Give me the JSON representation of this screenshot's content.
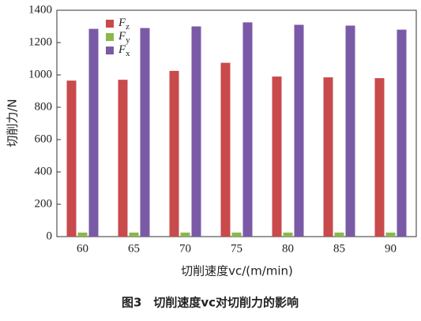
{
  "chart_data": {
    "type": "bar",
    "categories": [
      "60",
      "65",
      "70",
      "75",
      "80",
      "85",
      "90"
    ],
    "series": [
      {
        "name": "Fz",
        "color": "#c94a4b",
        "values": [
          965,
          970,
          1025,
          1075,
          990,
          985,
          980
        ]
      },
      {
        "name": "Fy",
        "color": "#8ab84a",
        "values": [
          25,
          25,
          25,
          25,
          25,
          25,
          25
        ]
      },
      {
        "name": "Fx",
        "color": "#7a5aa6",
        "values": [
          1285,
          1290,
          1300,
          1325,
          1310,
          1305,
          1280
        ]
      }
    ],
    "ylim": [
      0,
      1400
    ],
    "yticks": [
      0,
      200,
      400,
      600,
      800,
      1000,
      1200,
      1400
    ],
    "y_label": "切削力/N",
    "x_label": "切削速度vc/(m/min)",
    "caption": "图3　切削速度vc对切削力的影响",
    "legend": "upper left"
  }
}
